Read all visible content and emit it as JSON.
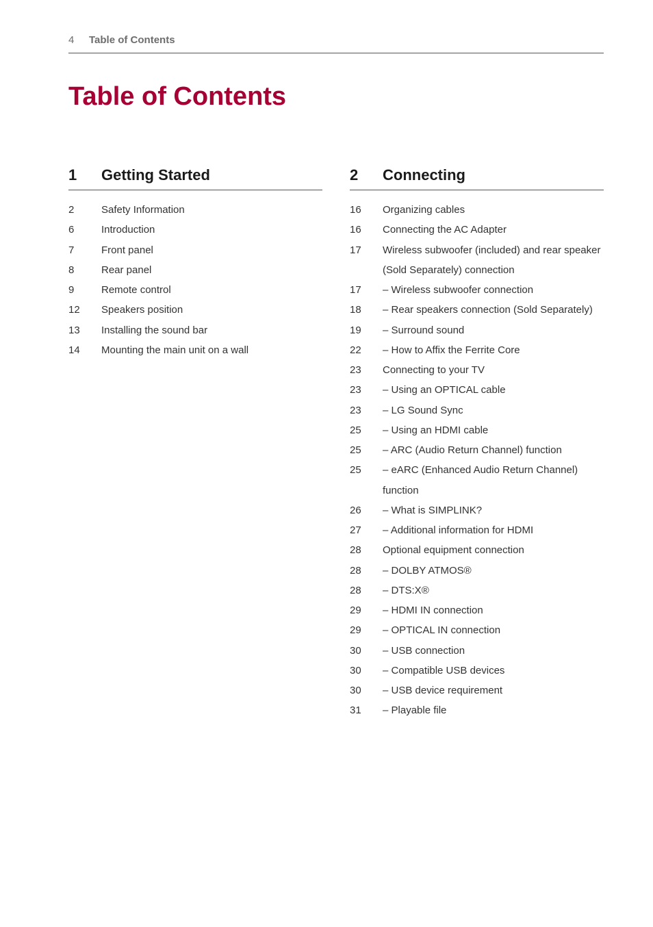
{
  "header": {
    "page_number": "4",
    "header_title": "Table of Contents"
  },
  "title": "Table of Contents",
  "colors": {
    "accent": "#a60034",
    "text": "#333333",
    "muted": "#6d6d6d",
    "rule": "#555555",
    "background": "#ffffff"
  },
  "sections": [
    {
      "number": "1",
      "title": "Getting Started",
      "entries": [
        {
          "page": "2",
          "label": "Safety Information",
          "sub": false
        },
        {
          "page": "6",
          "label": "Introduction",
          "sub": false
        },
        {
          "page": "7",
          "label": "Front panel",
          "sub": false
        },
        {
          "page": "8",
          "label": "Rear panel",
          "sub": false
        },
        {
          "page": "9",
          "label": "Remote control",
          "sub": false
        },
        {
          "page": "12",
          "label": "Speakers position",
          "sub": false
        },
        {
          "page": "13",
          "label": "Installing the sound bar",
          "sub": false
        },
        {
          "page": "14",
          "label": "Mounting the main unit on a wall",
          "sub": false
        }
      ]
    },
    {
      "number": "2",
      "title": "Connecting",
      "entries": [
        {
          "page": "16",
          "label": "Organizing cables",
          "sub": false
        },
        {
          "page": "16",
          "label": "Connecting the AC Adapter",
          "sub": false
        },
        {
          "page": "17",
          "label": "Wireless subwoofer (included) and rear speaker (Sold Separately) connection",
          "sub": false
        },
        {
          "page": "17",
          "label": "Wireless subwoofer connection",
          "sub": true
        },
        {
          "page": "18",
          "label": "Rear speakers connection (Sold Separately)",
          "sub": true
        },
        {
          "page": "19",
          "label": "Surround sound",
          "sub": true
        },
        {
          "page": "22",
          "label": "How to Affix the Ferrite Core",
          "sub": true
        },
        {
          "page": "23",
          "label": "Connecting to your TV",
          "sub": false
        },
        {
          "page": "23",
          "label": "Using an OPTICAL cable",
          "sub": true
        },
        {
          "page": "23",
          "label": "LG Sound Sync",
          "sub": true
        },
        {
          "page": "25",
          "label": "Using an HDMI cable",
          "sub": true
        },
        {
          "page": "25",
          "label": "ARC (Audio Return Channel) function",
          "sub": true
        },
        {
          "page": "25",
          "label": "eARC (Enhanced Audio Return Channel) function",
          "sub": true
        },
        {
          "page": "26",
          "label": "What is SIMPLINK?",
          "sub": true
        },
        {
          "page": "27",
          "label": "Additional information for HDMI",
          "sub": true
        },
        {
          "page": "28",
          "label": "Optional equipment connection",
          "sub": false
        },
        {
          "page": "28",
          "label": "DOLBY ATMOS®",
          "sub": true
        },
        {
          "page": "28",
          "label": "DTS:X®",
          "sub": true
        },
        {
          "page": "29",
          "label": "HDMI IN connection",
          "sub": true
        },
        {
          "page": "29",
          "label": "OPTICAL IN connection",
          "sub": true
        },
        {
          "page": "30",
          "label": "USB connection",
          "sub": true
        },
        {
          "page": "30",
          "label": "Compatible USB devices",
          "sub": true
        },
        {
          "page": "30",
          "label": "USB device requirement",
          "sub": true
        },
        {
          "page": "31",
          "label": "Playable file",
          "sub": true
        }
      ]
    }
  ]
}
